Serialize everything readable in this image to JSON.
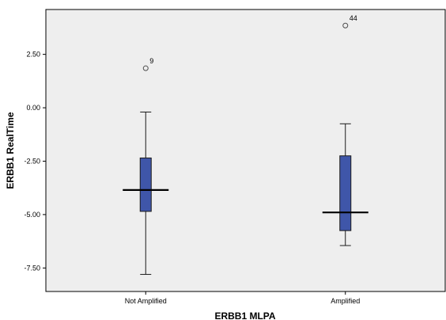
{
  "chart_data": {
    "type": "boxplot",
    "title": "",
    "xlabel": "ERBB1 MLPA",
    "ylabel": "ERBB1 RealTime",
    "categories": [
      "Not Amplified",
      "Amplified"
    ],
    "y_ticks": [
      "2.50",
      "0.00",
      "-2.50",
      "-5.00",
      "-7.50"
    ],
    "y_tick_values": [
      2.5,
      0.0,
      -2.5,
      -5.0,
      -7.5
    ],
    "ylim": [
      -8.6,
      4.6
    ],
    "grid": false,
    "boxes": [
      {
        "category": "Not Amplified",
        "min": -7.8,
        "q1": -4.85,
        "median": -3.85,
        "q3": -2.35,
        "max": -0.2,
        "outliers": [
          {
            "value": 1.85,
            "label": "9"
          }
        ]
      },
      {
        "category": "Amplified",
        "min": -6.45,
        "q1": -5.75,
        "median": -4.9,
        "q3": -2.25,
        "max": -0.75,
        "outliers": [
          {
            "value": 3.85,
            "label": "44"
          }
        ]
      }
    ],
    "colors": {
      "plot_background": "#eeeeee",
      "box_fill": "#3f56a9",
      "box_stroke": "#1a1a1a",
      "outlier_stroke": "#4d4d4d",
      "axis": "#000000"
    }
  }
}
